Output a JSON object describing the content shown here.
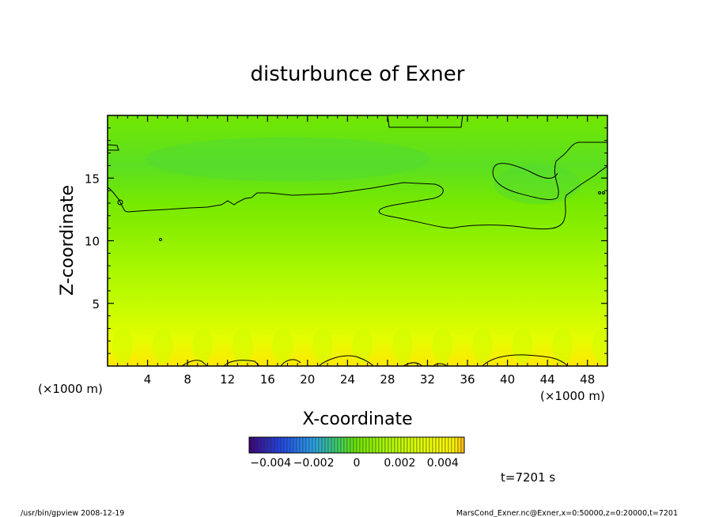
{
  "chart_data": {
    "type": "heatmap",
    "title": "disturbunce of Exner",
    "xlabel": "X-coordinate",
    "ylabel": "Z-coordinate",
    "x_unit_left": "(×1000 m)",
    "x_unit_right": "(×1000 m)",
    "xlim": [
      0,
      50
    ],
    "ylim": [
      0,
      20
    ],
    "x_ticks": [
      4,
      8,
      12,
      16,
      20,
      24,
      28,
      32,
      36,
      40,
      44,
      48
    ],
    "y_ticks": [
      5,
      10,
      15
    ],
    "colorbar": {
      "range": [
        -0.005,
        0.005
      ],
      "tick_labels": [
        "−0.004",
        "−0.002",
        "0",
        "0.002",
        "0.004"
      ],
      "tick_values": [
        -0.004,
        -0.002,
        0,
        0.002,
        0.004
      ]
    },
    "field_profile": [
      {
        "z": 0,
        "value": 0.0046
      },
      {
        "z": 2,
        "value": 0.0033
      },
      {
        "z": 5,
        "value": 0.0021
      },
      {
        "z": 8,
        "value": 0.0013
      },
      {
        "z": 11,
        "value": 0.0006
      },
      {
        "z": 13,
        "value": 0.0002
      },
      {
        "z": 16,
        "value": -0.0003
      },
      {
        "z": 20,
        "value": 0.0001
      }
    ],
    "contour_level": 0,
    "time_label": "t=7201 s",
    "footer_left": "/usr/bin/gpview   2008-12-19",
    "footer_right": "MarsCond_Exner.nc@Exner,x=0:50000,z=0:20000,t=7201"
  }
}
